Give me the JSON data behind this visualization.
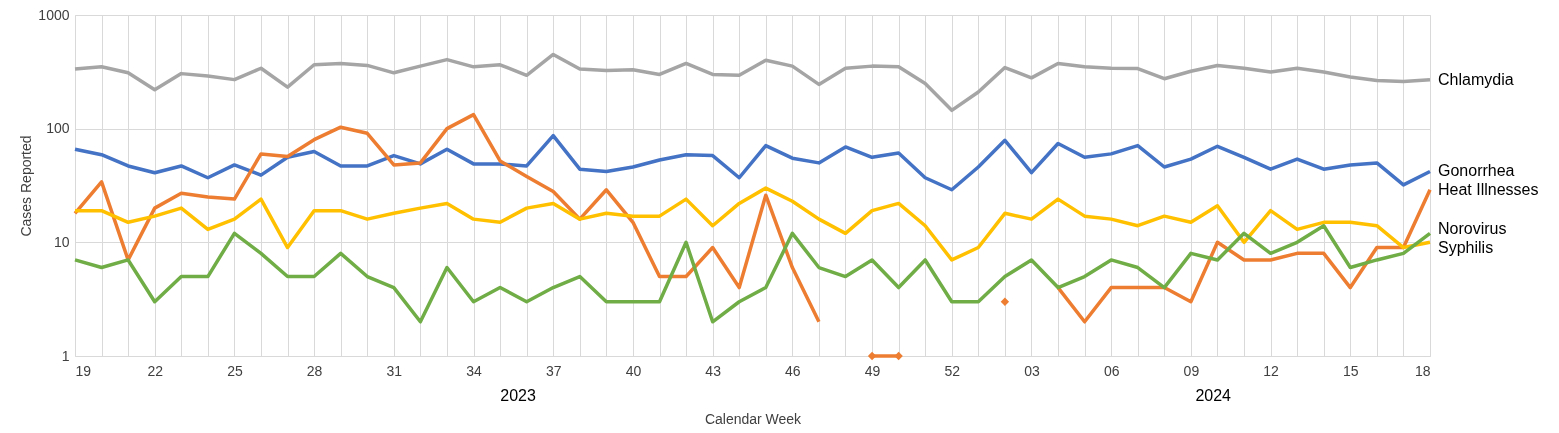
{
  "chart_data": {
    "type": "line",
    "xlabel": "Calendar Week",
    "ylabel": "Cases Reported",
    "categories": [
      "19",
      null,
      null,
      "22",
      null,
      null,
      "25",
      null,
      null,
      "28",
      null,
      null,
      "31",
      null,
      null,
      "34",
      null,
      null,
      "37",
      null,
      null,
      "40",
      null,
      null,
      "43",
      null,
      null,
      "46",
      null,
      null,
      "49",
      null,
      null,
      "52",
      null,
      null,
      "03",
      null,
      null,
      "06",
      null,
      null,
      "09",
      null,
      null,
      "12",
      null,
      null,
      "15",
      null,
      null,
      "18"
    ],
    "ylim": [
      1,
      1000
    ],
    "yticks": [
      1,
      10,
      100,
      1000
    ],
    "log": "y",
    "grid": true,
    "legend": false,
    "annotations": [
      "2023",
      "2024"
    ],
    "series": [
      {
        "name": "Chlamydia",
        "color": "#a5a5a5",
        "values": [
          335,
          350,
          310,
          220,
          305,
          290,
          270,
          340,
          232,
          365,
          375,
          360,
          310,
          355,
          405,
          350,
          365,
          295,
          450,
          335,
          325,
          330,
          300,
          375,
          300,
          295,
          400,
          355,
          245,
          340,
          355,
          350,
          250,
          145,
          210,
          345,
          280,
          375,
          350,
          340,
          338,
          275,
          320,
          360,
          340,
          315,
          340,
          315,
          285,
          265,
          260,
          270
        ]
      },
      {
        "name": "Gonorrhea",
        "color": "#4472c4",
        "values": [
          66,
          59,
          47,
          41,
          47,
          37,
          48,
          39,
          56,
          63,
          47,
          47,
          58,
          49,
          66,
          49,
          49,
          47,
          87,
          44,
          42,
          46,
          53,
          59,
          58,
          37,
          71,
          55,
          50,
          69,
          56,
          61,
          37,
          29,
          46,
          79,
          41,
          74,
          56,
          60,
          71,
          46,
          54,
          70,
          56,
          44,
          54,
          44,
          48,
          50,
          32,
          42
        ]
      },
      {
        "name": "Heat Illnesses",
        "color": "#ed7d31",
        "values": [
          18,
          34,
          7,
          20,
          27,
          25,
          24,
          60,
          57,
          80,
          103,
          91,
          48,
          50,
          100,
          133,
          52,
          38,
          28,
          16,
          29,
          15,
          5,
          5,
          9,
          4,
          26,
          6,
          2,
          null,
          1,
          1,
          null,
          null,
          null,
          3,
          null,
          4,
          2,
          4,
          4,
          4,
          3,
          10,
          7,
          7,
          8,
          8,
          4,
          9,
          9,
          29
        ]
      },
      {
        "name": "Norovirus",
        "color": "#ffc000",
        "values": [
          19,
          19,
          15,
          17,
          20,
          13,
          16,
          24,
          9,
          19,
          19,
          16,
          18,
          20,
          22,
          16,
          15,
          20,
          22,
          16,
          18,
          17,
          17,
          24,
          14,
          22,
          30,
          23,
          16,
          12,
          19,
          22,
          14,
          7,
          9,
          18,
          16,
          24,
          17,
          16,
          14,
          17,
          15,
          21,
          10,
          19,
          13,
          15,
          15,
          14,
          9,
          10
        ]
      },
      {
        "name": "Syphilis",
        "color": "#70ad47",
        "values": [
          7,
          6,
          7,
          3,
          5,
          5,
          12,
          8,
          5,
          5,
          8,
          5,
          4,
          2,
          6,
          3,
          4,
          3,
          4,
          5,
          3,
          3,
          3,
          10,
          2,
          3,
          4,
          12,
          6,
          5,
          7,
          4,
          7,
          3,
          3,
          5,
          7,
          4,
          5,
          7,
          6,
          4,
          8,
          7,
          12,
          8,
          10,
          14,
          6,
          7,
          8,
          12
        ]
      }
    ]
  }
}
